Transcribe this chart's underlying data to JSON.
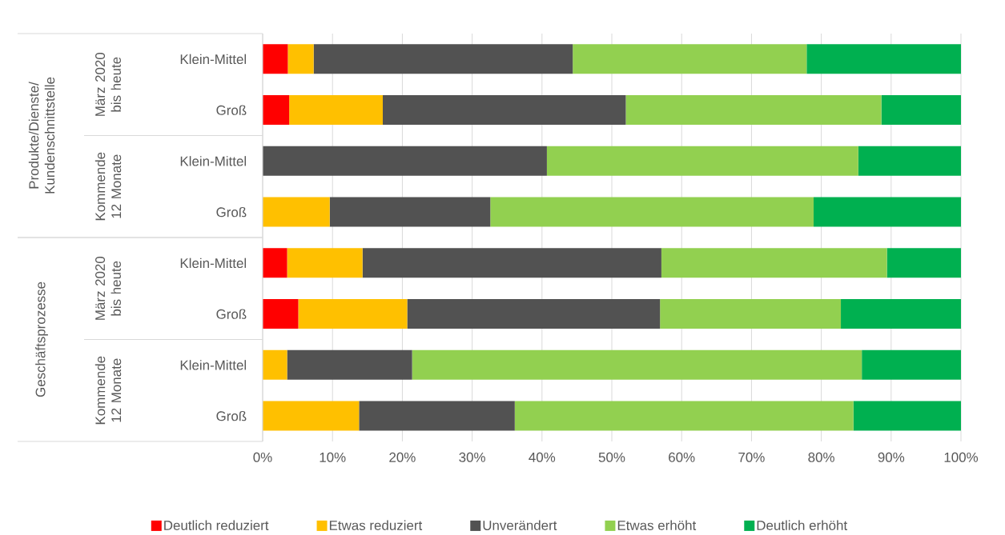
{
  "chart_data": {
    "type": "bar",
    "orientation": "horizontal",
    "stacked": true,
    "categories": [
      "Klein-Mittel",
      "Groß",
      "Klein-Mittel",
      "Groß",
      "Klein-Mittel",
      "Groß",
      "Klein-Mittel",
      "Groß"
    ],
    "series": [
      {
        "name": "Deutlich reduziert",
        "color": "#ff0000",
        "values": [
          3.6,
          3.8,
          0,
          0,
          3.5,
          5.1,
          0,
          0
        ]
      },
      {
        "name": "Etwas reduziert",
        "color": "#ffc000",
        "values": [
          3.7,
          13.4,
          0,
          9.6,
          10.8,
          15.6,
          3.5,
          13.8
        ]
      },
      {
        "name": "Unverändert",
        "color": "#525252",
        "values": [
          37.1,
          34.8,
          40.7,
          23.0,
          42.8,
          36.2,
          17.9,
          22.3
        ]
      },
      {
        "name": "Etwas erhöht",
        "color": "#92d050",
        "values": [
          33.5,
          36.6,
          44.6,
          46.3,
          32.3,
          25.9,
          64.4,
          48.5
        ]
      },
      {
        "name": "Deutlich erhöht",
        "color": "#00b050",
        "values": [
          22.1,
          11.4,
          14.7,
          21.1,
          10.6,
          17.2,
          14.2,
          15.4
        ]
      }
    ],
    "xlim": [
      0,
      100
    ],
    "xticks": [
      {
        "value": 0,
        "label": "0%"
      },
      {
        "value": 10,
        "label": "10%"
      },
      {
        "value": 20,
        "label": "20%"
      },
      {
        "value": 30,
        "label": "30%"
      },
      {
        "value": 40,
        "label": "40%"
      },
      {
        "value": 50,
        "label": "50%"
      },
      {
        "value": 60,
        "label": "60%"
      },
      {
        "value": 70,
        "label": "70%"
      },
      {
        "value": 80,
        "label": "80%"
      },
      {
        "value": 90,
        "label": "90%"
      },
      {
        "value": 100,
        "label": "100%"
      }
    ],
    "grid": "x",
    "legend": "bottom",
    "annotations": [
      "Produkte/Dienste/ Kundenschnittstelle",
      "März 2020 bis heute",
      "Kommende 12 Monate",
      "Geschäftsprozesse",
      "März 2020 bis heute",
      "Kommende 12 Monate"
    ]
  }
}
